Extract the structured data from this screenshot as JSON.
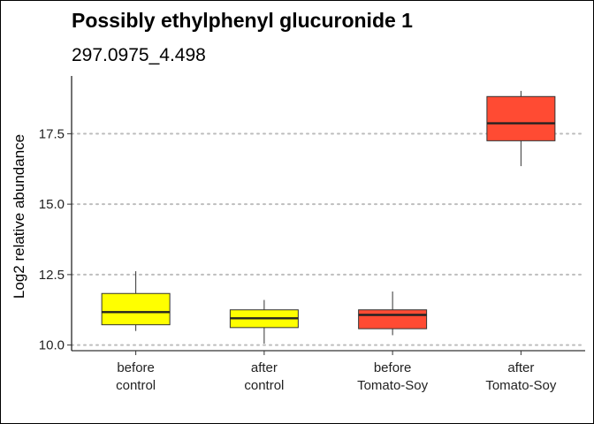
{
  "chart_data": {
    "type": "box",
    "title": "Possibly ethylphenyl glucuronide 1",
    "subtitle": "297.0975_4.498",
    "xlabel": "",
    "ylabel": "Log2 relative abundance",
    "ylim": [
      9.8,
      19.55
    ],
    "yticks": [
      10.0,
      12.5,
      15.0,
      17.5
    ],
    "ytick_labels": [
      "10.0",
      "12.5",
      "15.0",
      "17.5"
    ],
    "grid": "horizontal dotted",
    "categories": [
      {
        "line1": "before",
        "line2": "control"
      },
      {
        "line1": "after",
        "line2": "control"
      },
      {
        "line1": "before",
        "line2": "Tomato-Soy"
      },
      {
        "line1": "after",
        "line2": "Tomato-Soy"
      }
    ],
    "boxes": [
      {
        "min": 10.5,
        "q1": 10.72,
        "median": 11.17,
        "q3": 11.83,
        "max": 12.62,
        "color": "#ffff00"
      },
      {
        "min": 10.05,
        "q1": 10.62,
        "median": 10.95,
        "q3": 11.25,
        "max": 11.6,
        "color": "#ffff00"
      },
      {
        "min": 10.35,
        "q1": 10.58,
        "median": 11.07,
        "q3": 11.25,
        "max": 11.9,
        "color": "#ff4b33"
      },
      {
        "min": 16.35,
        "q1": 17.25,
        "median": 17.87,
        "q3": 18.82,
        "max": 19.02,
        "color": "#ff4b33"
      }
    ]
  }
}
